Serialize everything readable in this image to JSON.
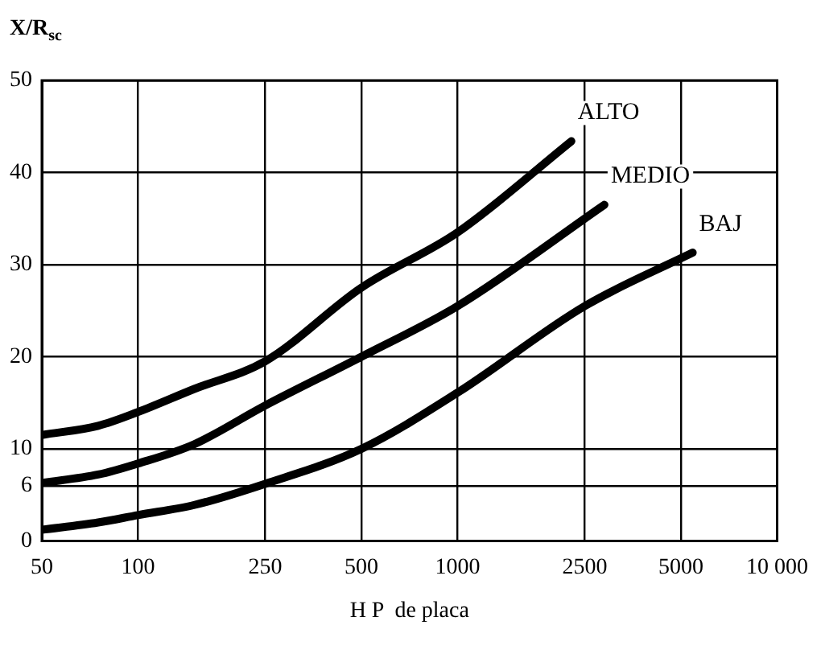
{
  "chart_data": {
    "type": "line",
    "xlabel": "H P  de placa",
    "ylabel": "X/R$_{sc}$",
    "series": [
      {
        "name": "ALTO",
        "color": "#000000",
        "x": [
          50,
          75,
          100,
          150,
          250,
          500,
          1000,
          2270
        ],
        "values": [
          11.5,
          12.5,
          14,
          16.5,
          19.5,
          27.5,
          33.5,
          43.4
        ]
      },
      {
        "name": "MEDIO",
        "color": "#000000",
        "x": [
          50,
          75,
          100,
          150,
          250,
          500,
          1000,
          2880
        ],
        "values": [
          6.3,
          7.2,
          8.4,
          10.5,
          14.7,
          20,
          25.5,
          36.5
        ]
      },
      {
        "name": "BAJ",
        "color": "#000000",
        "x": [
          50,
          75,
          100,
          150,
          250,
          500,
          1000,
          2500,
          5440
        ],
        "values": [
          1.2,
          2,
          2.8,
          3.9,
          6.2,
          10,
          16.1,
          25.5,
          31.3
        ]
      }
    ],
    "log": "x",
    "xlim": [
      50,
      10000
    ],
    "xticks": [
      50,
      100,
      250,
      500,
      1000,
      2500,
      5000,
      {
        "value": 10000,
        "label": "10 000"
      }
    ],
    "ylim": [
      0,
      50
    ],
    "yticks": [
      0,
      6,
      10,
      20,
      30,
      40,
      50
    ],
    "grid": true,
    "legend": false,
    "marker": "none",
    "line_style": "solid"
  }
}
